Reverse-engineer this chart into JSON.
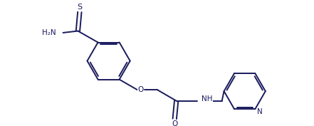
{
  "bg_color": "#ffffff",
  "line_color": "#1a1a5e",
  "line_width": 1.4,
  "figsize": [
    4.41,
    1.77
  ],
  "dpi": 100,
  "xlim": [
    0,
    9.0
  ],
  "ylim": [
    0.5,
    4.0
  ]
}
